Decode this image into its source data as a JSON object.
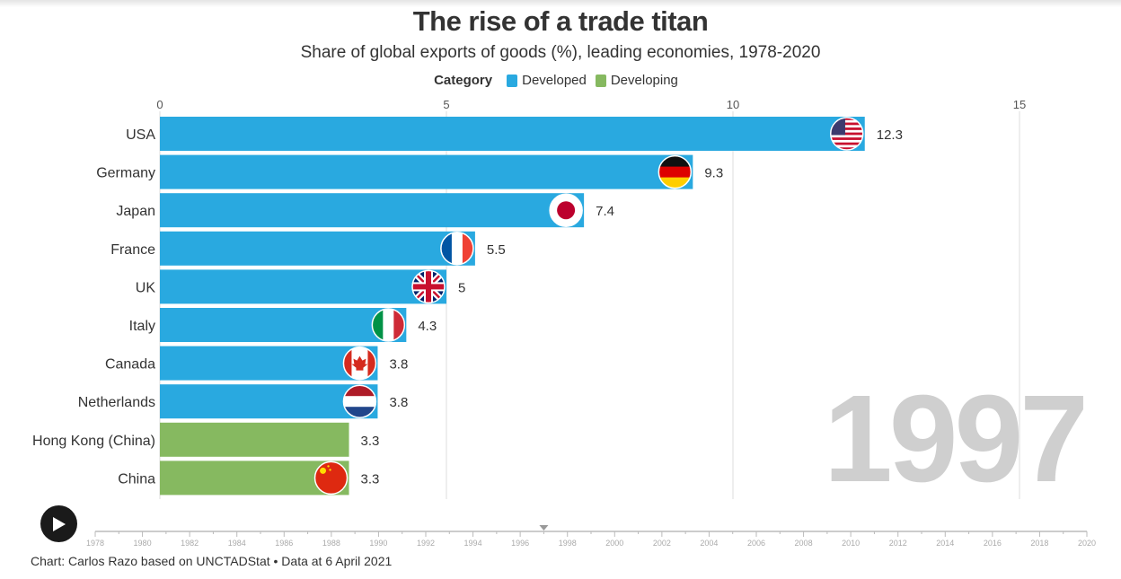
{
  "header": {
    "title": "The rise of a trade titan",
    "subtitle": "Share of global exports of goods (%), leading economies, 1978-2020"
  },
  "legend": {
    "title": "Category",
    "items": [
      {
        "label": "Developed",
        "color": "#29a9e0"
      },
      {
        "label": "Developing",
        "color": "#86b960"
      }
    ]
  },
  "chart_data": {
    "type": "bar",
    "orientation": "horizontal",
    "title": "The rise of a trade titan",
    "subtitle": "Share of global exports of goods (%), leading economies, 1978-2020",
    "year": "1997",
    "xlim": [
      0,
      16
    ],
    "x_ticks": [
      0,
      5,
      10,
      15
    ],
    "grid": true,
    "legend_position": "top-center",
    "categories": [
      "USA",
      "Germany",
      "Japan",
      "France",
      "UK",
      "Italy",
      "Canada",
      "Netherlands",
      "Hong Kong (China)",
      "China"
    ],
    "values": [
      12.3,
      9.3,
      7.4,
      5.5,
      5,
      4.3,
      3.8,
      3.8,
      3.3,
      3.3
    ],
    "value_labels": [
      "12.3",
      "9.3",
      "7.4",
      "5.5",
      "5",
      "4.3",
      "3.8",
      "3.8",
      "3.3",
      "3.3"
    ],
    "group": [
      "Developed",
      "Developed",
      "Developed",
      "Developed",
      "Developed",
      "Developed",
      "Developed",
      "Developed",
      "Developing",
      "Developing"
    ],
    "flags": [
      "usa-flag-icon",
      "germany-flag-icon",
      "japan-flag-icon",
      "france-flag-icon",
      "uk-flag-icon",
      "italy-flag-icon",
      "canada-flag-icon",
      "netherlands-flag-icon",
      "none",
      "china-flag-icon"
    ]
  },
  "timeline": {
    "years": [
      "1978",
      "1980",
      "1982",
      "1984",
      "1986",
      "1988",
      "1990",
      "1992",
      "1994",
      "1996",
      "1998",
      "2000",
      "2002",
      "2004",
      "2006",
      "2008",
      "2010",
      "2012",
      "2014",
      "2016",
      "2018",
      "2020"
    ],
    "current_year": 1997,
    "start_year": 1978,
    "end_year": 2020
  },
  "controls": {
    "play_icon": "play-icon"
  },
  "footer": {
    "credit": "Chart: Carlos Razo based on UNCTADStat • Data at 6 April 2021"
  }
}
